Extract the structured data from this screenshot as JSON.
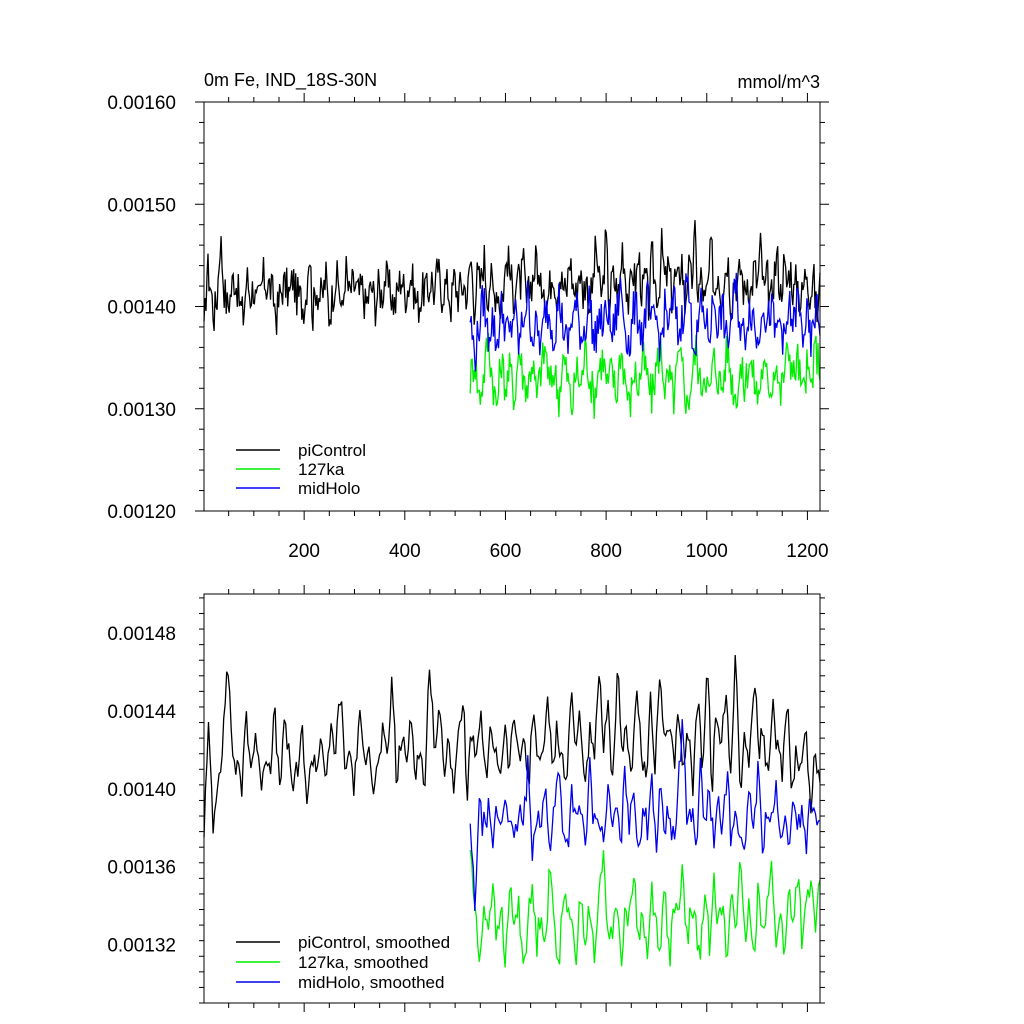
{
  "chart_data": [
    {
      "type": "line",
      "title": "0m Fe, IND_18S-30N",
      "units": "mmol/m^3",
      "xlabel": "",
      "ylabel": "",
      "xlim": [
        1,
        1225
      ],
      "ylim": [
        0.0012,
        0.0016
      ],
      "x_ticks": [
        200,
        400,
        600,
        800,
        1000,
        1200
      ],
      "x_tick_labels": [
        "200",
        "400",
        "600",
        "800",
        "1000",
        "1200"
      ],
      "y_ticks": [
        0.0012,
        0.0013,
        0.0014,
        0.0015,
        0.0016
      ],
      "y_tick_labels": [
        "0.00120",
        "0.00130",
        "0.00140",
        "0.00150",
        "0.00160"
      ],
      "legend_position": "bottom-left",
      "grid": false,
      "series": [
        {
          "name": "piControl",
          "color": "#000000",
          "x_range": [
            1,
            1225
          ],
          "values": [
            0.00137,
            0.00144,
            0.00142,
            0.00139,
            0.00141,
            0.00147,
            0.00142,
            0.0014,
            0.00141,
            0.00143,
            0.00142,
            0.0014,
            0.00139,
            0.00143,
            0.00141,
            0.00142,
            0.0014,
            0.00141,
            0.00143,
            0.00142,
            0.00142,
            0.00141,
            0.00139,
            0.00141,
            0.00142,
            0.00142,
            0.00141,
            0.00143,
            0.00141,
            0.00141,
            0.0014,
            0.00141,
            0.00146,
            0.00139,
            0.00142,
            0.00141,
            0.00141,
            0.00143,
            0.00139,
            0.00141,
            0.00143,
            0.00142,
            0.00139,
            0.00144,
            0.00141,
            0.00142,
            0.00142,
            0.00141,
            0.00142,
            0.0014,
            0.00141,
            0.00142,
            0.0014,
            0.00142,
            0.00141,
            0.00143,
            0.00142,
            0.00141,
            0.0014,
            0.00142,
            0.00143,
            0.00141,
            0.00142,
            0.00143,
            0.00141,
            0.0014,
            0.00141,
            0.00142,
            0.00141,
            0.00143,
            0.00141,
            0.00144,
            0.00141,
            0.00142,
            0.00142,
            0.0014,
            0.00143,
            0.00141,
            0.00142,
            0.00142,
            0.00141,
            0.00145,
            0.0014,
            0.00143,
            0.00142,
            0.00145,
            0.00141,
            0.00143,
            0.00141,
            0.00142,
            0.0014,
            0.00142,
            0.00145,
            0.00143,
            0.00141,
            0.00143,
            0.00142,
            0.00144,
            0.0014,
            0.00142,
            0.00143,
            0.00145,
            0.00141,
            0.00143,
            0.0014,
            0.00142,
            0.00144,
            0.00141,
            0.00143,
            0.00142,
            0.00141,
            0.00145,
            0.00142,
            0.00141,
            0.00144,
            0.00141,
            0.00143,
            0.0014,
            0.00142,
            0.00146,
            0.00142,
            0.00141,
            0.00147,
            0.0014,
            0.00143,
            0.00142,
            0.00141,
            0.00146,
            0.00143,
            0.0014,
            0.00144,
            0.00142,
            0.00145,
            0.00141,
            0.00143,
            0.0014,
            0.00145,
            0.00142,
            0.00141,
            0.00146,
            0.00142,
            0.00144,
            0.00141,
            0.00143,
            0.00142,
            0.00145,
            0.0014,
            0.00144,
            0.00142,
            0.00147,
            0.00141,
            0.00143,
            0.0014,
            0.00142,
            0.00146,
            0.00141,
            0.00144,
            0.00141,
            0.00143,
            0.00145,
            0.0014,
            0.00143,
            0.00142,
            0.00144,
            0.00141,
            0.00143,
            0.00141,
            0.00144,
            0.00142,
            0.00146,
            0.00141,
            0.00143,
            0.0014,
            0.00143,
            0.00145,
            0.00141,
            0.00144,
            0.00142,
            0.00144,
            0.00141,
            0.00143,
            0.0014,
            0.00142,
            0.00144,
            0.00141,
            0.00143,
            0.00139,
            0.00142
          ]
        },
        {
          "name": "127ka",
          "color": "#00ee00",
          "x_range": [
            530,
            1225
          ],
          "values": [
            0.00133,
            0.00135,
            0.00131,
            0.00133,
            0.00137,
            0.00133,
            0.0013,
            0.00135,
            0.00132,
            0.00134,
            0.00131,
            0.00136,
            0.00133,
            0.00132,
            0.00135,
            0.00131,
            0.00134,
            0.00136,
            0.00132,
            0.00134,
            0.00131,
            0.00135,
            0.00133,
            0.0013,
            0.00134,
            0.00132,
            0.00136,
            0.00133,
            0.00131,
            0.00134,
            0.00135,
            0.00132,
            0.00134,
            0.00131,
            0.00136,
            0.00133,
            0.0013,
            0.00134,
            0.00132,
            0.00135,
            0.00133,
            0.00131,
            0.00134,
            0.00136,
            0.00132,
            0.00133,
            0.00131,
            0.00135,
            0.00134,
            0.0013,
            0.00133,
            0.00136,
            0.00132,
            0.00134,
            0.00131,
            0.00135,
            0.00133,
            0.00132,
            0.00136,
            0.00133,
            0.00131,
            0.00134,
            0.00132,
            0.00135,
            0.00133,
            0.00131,
            0.00134,
            0.00133,
            0.00132,
            0.00135,
            0.00131,
            0.00134,
            0.00136,
            0.00133,
            0.00135,
            0.00131,
            0.00134,
            0.00132,
            0.00136,
            0.00134
          ]
        },
        {
          "name": "midHolo",
          "color": "#0000ee",
          "x_range": [
            530,
            1225
          ],
          "values": [
            0.00139,
            0.00135,
            0.00138,
            0.00141,
            0.00137,
            0.00139,
            0.00136,
            0.0014,
            0.00138,
            0.00137,
            0.0014,
            0.00136,
            0.00139,
            0.00141,
            0.00137,
            0.00138,
            0.00136,
            0.0014,
            0.00139,
            0.00137,
            0.00141,
            0.00138,
            0.00136,
            0.00139,
            0.0014,
            0.00137,
            0.00138,
            0.00141,
            0.00136,
            0.00139,
            0.00138,
            0.0014,
            0.00137,
            0.00139,
            0.00142,
            0.00138,
            0.00136,
            0.0014,
            0.00139,
            0.00137,
            0.00141,
            0.00138,
            0.00139,
            0.00136,
            0.0014,
            0.00138,
            0.00141,
            0.00137,
            0.00139,
            0.00143,
            0.00138,
            0.00136,
            0.0014,
            0.00139,
            0.00137,
            0.00141,
            0.00138,
            0.0014,
            0.00136,
            0.00139,
            0.00142,
            0.00138,
            0.00137,
            0.0014,
            0.00139,
            0.00136,
            0.00141,
            0.00138,
            0.0014,
            0.00137,
            0.00139,
            0.00136,
            0.0014,
            0.00138,
            0.00141,
            0.00137,
            0.00139,
            0.00136,
            0.0014,
            0.00138
          ]
        }
      ]
    },
    {
      "type": "line",
      "title": "",
      "xlabel": "",
      "ylabel": "",
      "xlim": [
        1,
        1225
      ],
      "ylim": [
        0.00129,
        0.0015
      ],
      "x_ticks": [
        200,
        400,
        600,
        800,
        1000,
        1200
      ],
      "x_tick_labels": [],
      "y_ticks": [
        0.00132,
        0.00136,
        0.0014,
        0.00144,
        0.00148
      ],
      "y_tick_labels": [
        "0.00132",
        "0.00136",
        "0.00140",
        "0.00144",
        "0.00148"
      ],
      "legend_position": "bottom-left",
      "grid": false,
      "series": [
        {
          "name": "piControl, smoothed",
          "color": "#000000",
          "x_range": [
            1,
            1225
          ],
          "values": [
            0.00138,
            0.00143,
            0.00138,
            0.00141,
            0.00142,
            0.00147,
            0.00142,
            0.00141,
            0.0014,
            0.00144,
            0.00141,
            0.00143,
            0.0014,
            0.00142,
            0.00141,
            0.00144,
            0.0014,
            0.00143,
            0.00142,
            0.0014,
            0.00141,
            0.00143,
            0.00139,
            0.00142,
            0.00141,
            0.00143,
            0.0014,
            0.00143,
            0.00142,
            0.00145,
            0.00141,
            0.00142,
            0.0014,
            0.00144,
            0.00141,
            0.00143,
            0.0014,
            0.00141,
            0.00143,
            0.00141,
            0.00146,
            0.0014,
            0.00143,
            0.00141,
            0.00144,
            0.00141,
            0.00142,
            0.0014,
            0.00147,
            0.00142,
            0.00144,
            0.00141,
            0.00143,
            0.0014,
            0.00142,
            0.00145,
            0.0014,
            0.00143,
            0.00141,
            0.00144,
            0.0014,
            0.00143,
            0.00142,
            0.00141,
            0.00143,
            0.00141,
            0.00144,
            0.00141,
            0.00143,
            0.0014,
            0.00144,
            0.00142,
            0.00141,
            0.00145,
            0.00141,
            0.00143,
            0.00142,
            0.0014,
            0.00145,
            0.00142,
            0.00144,
            0.0014,
            0.00143,
            0.00141,
            0.00146,
            0.00142,
            0.00144,
            0.0014,
            0.00146,
            0.00142,
            0.00143,
            0.00141,
            0.00145,
            0.00142,
            0.0014,
            0.00145,
            0.00141,
            0.00146,
            0.00142,
            0.00143,
            0.00141,
            0.00144,
            0.00141,
            0.00143,
            0.0014,
            0.00145,
            0.00141,
            0.00147,
            0.0014,
            0.00144,
            0.00142,
            0.00145,
            0.00141,
            0.00147,
            0.0014,
            0.00143,
            0.00141,
            0.00146,
            0.00142,
            0.00143,
            0.0014,
            0.00144,
            0.00142,
            0.00141,
            0.00145,
            0.0014,
            0.00142,
            0.00141,
            0.00143,
            0.00139,
            0.00142,
            0.0014
          ]
        },
        {
          "name": "127ka, smoothed",
          "color": "#00ee00",
          "x_range": [
            530,
            1225
          ],
          "values": [
            0.00137,
            0.00134,
            0.00131,
            0.00134,
            0.00133,
            0.00135,
            0.00132,
            0.00134,
            0.00131,
            0.00135,
            0.00133,
            0.00134,
            0.00131,
            0.00133,
            0.00135,
            0.00132,
            0.00134,
            0.00132,
            0.00136,
            0.00133,
            0.00131,
            0.00135,
            0.00133,
            0.00134,
            0.00131,
            0.00135,
            0.00132,
            0.00134,
            0.00131,
            0.00134,
            0.00137,
            0.00133,
            0.00132,
            0.00135,
            0.00131,
            0.00134,
            0.00133,
            0.00136,
            0.00132,
            0.00134,
            0.00131,
            0.00135,
            0.00133,
            0.00132,
            0.00135,
            0.00131,
            0.00134,
            0.00133,
            0.00136,
            0.00132,
            0.00134,
            0.00133,
            0.00131,
            0.00135,
            0.00132,
            0.00136,
            0.00133,
            0.00134,
            0.00131,
            0.00135,
            0.00133,
            0.00136,
            0.00132,
            0.00134,
            0.00131,
            0.00135,
            0.00133,
            0.00134,
            0.00136,
            0.00132,
            0.00134,
            0.00131,
            0.00135,
            0.00133,
            0.00136,
            0.00132,
            0.00134,
            0.00135,
            0.00133,
            0.00135
          ]
        },
        {
          "name": "midHolo, smoothed",
          "color": "#0000ee",
          "x_range": [
            530,
            1225
          ],
          "values": [
            0.00138,
            0.00134,
            0.00139,
            0.00138,
            0.00139,
            0.00137,
            0.00139,
            0.00138,
            0.0014,
            0.00138,
            0.00137,
            0.00139,
            0.00138,
            0.00141,
            0.00137,
            0.00139,
            0.00138,
            0.0014,
            0.00137,
            0.00139,
            0.00141,
            0.00138,
            0.00137,
            0.0014,
            0.00138,
            0.00139,
            0.00137,
            0.00141,
            0.00138,
            0.00139,
            0.00137,
            0.0014,
            0.00138,
            0.00139,
            0.00137,
            0.00141,
            0.00138,
            0.0014,
            0.00137,
            0.00139,
            0.00138,
            0.00141,
            0.00137,
            0.0014,
            0.00138,
            0.00139,
            0.00137,
            0.0014,
            0.00144,
            0.00138,
            0.00139,
            0.00137,
            0.00141,
            0.00138,
            0.0014,
            0.00137,
            0.00139,
            0.00138,
            0.00141,
            0.00137,
            0.00139,
            0.00138,
            0.00136,
            0.0014,
            0.00138,
            0.00141,
            0.00137,
            0.00139,
            0.00138,
            0.0014,
            0.00137,
            0.00139,
            0.00136,
            0.0014,
            0.00138,
            0.00139,
            0.00137,
            0.0014,
            0.00138,
            0.00139
          ]
        }
      ]
    }
  ]
}
